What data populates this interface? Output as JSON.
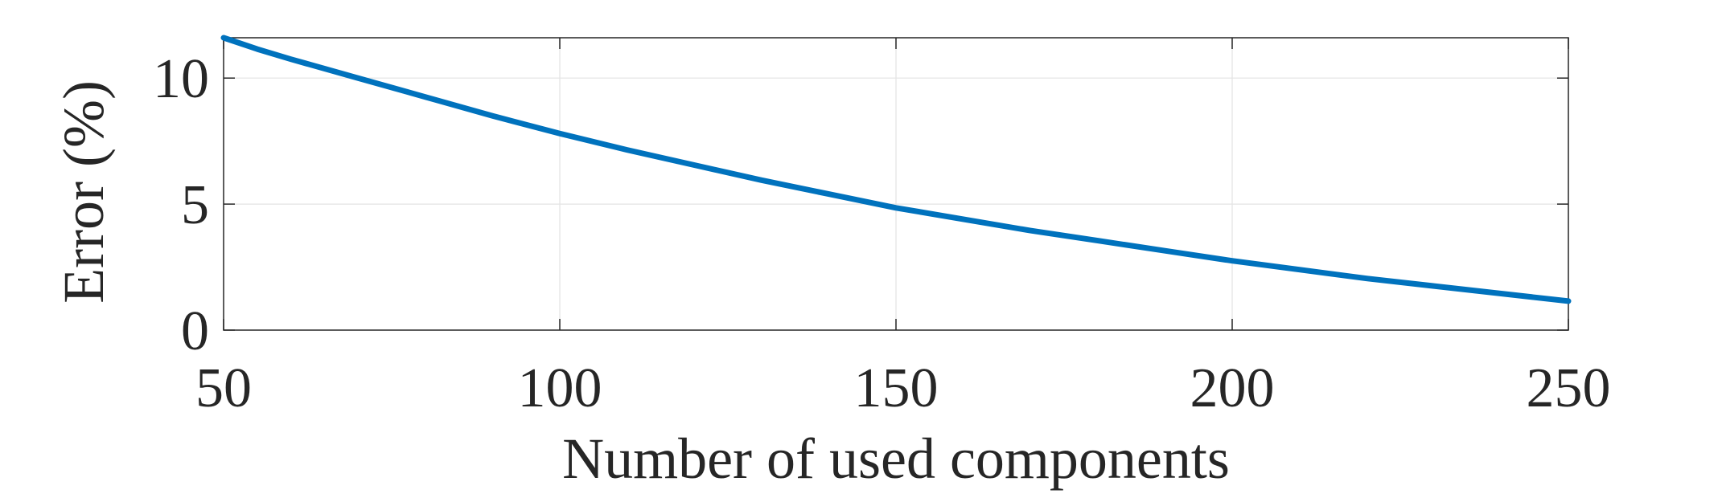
{
  "chart_data": {
    "type": "line",
    "title": "",
    "xlabel": "Number of used components",
    "ylabel": "Error (%)",
    "xlim": [
      50,
      250
    ],
    "ylim": [
      0,
      11.6
    ],
    "xticks": [
      50,
      100,
      150,
      200,
      250
    ],
    "yticks": [
      0,
      5,
      10
    ],
    "grid": true,
    "series": [
      {
        "color": "#0072BD",
        "x": [
          50,
          55,
          60,
          70,
          80,
          90,
          100,
          110,
          120,
          130,
          140,
          150,
          160,
          170,
          180,
          190,
          200,
          210,
          220,
          230,
          240,
          250
        ],
        "y": [
          11.6,
          11.15,
          10.75,
          10.0,
          9.25,
          8.5,
          7.8,
          7.15,
          6.55,
          5.95,
          5.4,
          4.85,
          4.4,
          3.95,
          3.55,
          3.15,
          2.75,
          2.4,
          2.05,
          1.75,
          1.45,
          1.15
        ]
      }
    ]
  }
}
